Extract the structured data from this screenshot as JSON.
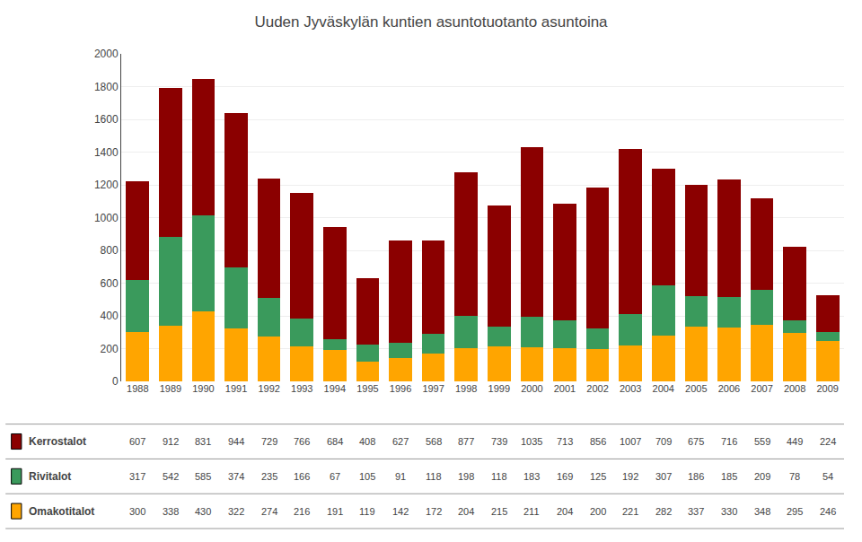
{
  "chart_data": {
    "type": "bar",
    "title": "Uuden Jyväskylän kuntien asuntotuotanto asuntoina",
    "categories": [
      "1988",
      "1989",
      "1990",
      "1991",
      "1992",
      "1993",
      "1994",
      "1995",
      "1996",
      "1997",
      "1998",
      "1999",
      "2000",
      "2001",
      "2002",
      "2003",
      "2004",
      "2005",
      "2006",
      "2007",
      "2008",
      "2009"
    ],
    "series": [
      {
        "name": "Omakotitalot",
        "color": "#FFA500",
        "values": [
          300,
          338,
          430,
          322,
          274,
          216,
          191,
          119,
          142,
          172,
          204,
          215,
          211,
          204,
          200,
          221,
          282,
          337,
          330,
          348,
          295,
          246
        ]
      },
      {
        "name": "Rivitalot",
        "color": "#3A9A5C",
        "values": [
          317,
          542,
          585,
          374,
          235,
          166,
          67,
          105,
          91,
          118,
          198,
          118,
          183,
          169,
          125,
          192,
          307,
          186,
          185,
          209,
          78,
          54
        ]
      },
      {
        "name": "Kerrostalot",
        "color": "#8B0000",
        "values": [
          607,
          912,
          831,
          944,
          729,
          766,
          684,
          408,
          627,
          568,
          877,
          739,
          1035,
          713,
          856,
          1007,
          709,
          675,
          716,
          559,
          449,
          224
        ]
      }
    ],
    "stacked": true,
    "ylim": [
      0,
      2000
    ],
    "yticks": [
      0,
      200,
      400,
      600,
      800,
      1000,
      1200,
      1400,
      1600,
      1800,
      2000
    ],
    "grid": true
  }
}
